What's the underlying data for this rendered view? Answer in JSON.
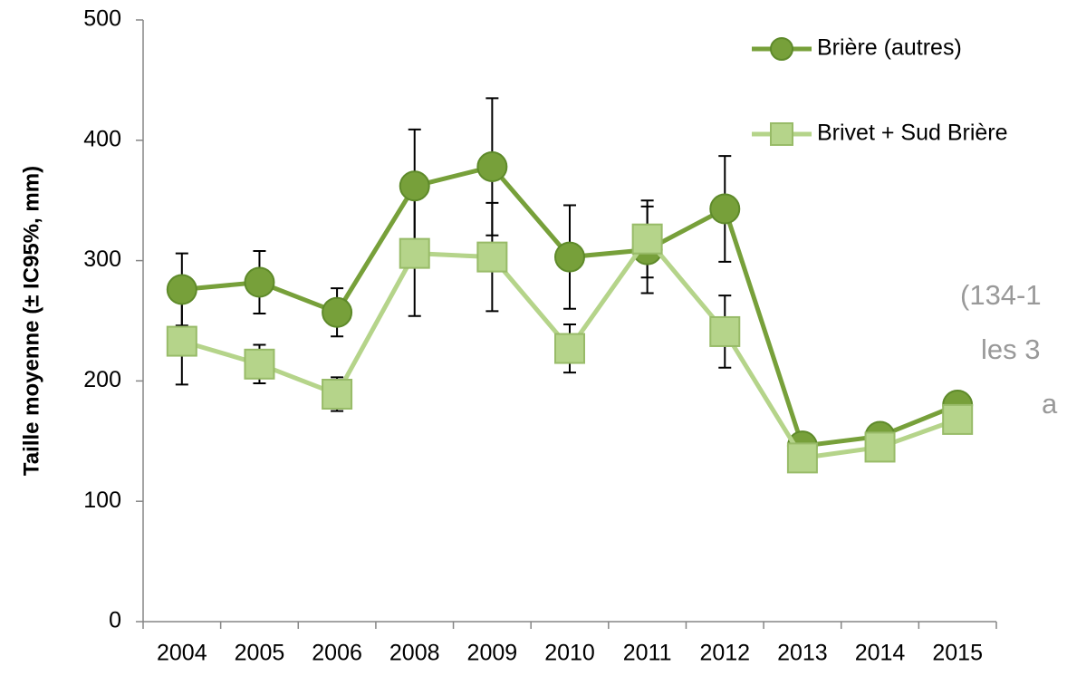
{
  "chart_data": {
    "type": "line",
    "y_label": "Taille moyenne (± IC95%, mm)",
    "categories": [
      "2004",
      "2005",
      "2006",
      "2008",
      "2009",
      "2010",
      "2011",
      "2012",
      "2013",
      "2014",
      "2015"
    ],
    "series": [
      {
        "name": "Brière (autres)",
        "color": "#77a03a",
        "marker": "circle",
        "values": [
          276,
          282,
          257,
          362,
          378,
          303,
          309,
          343,
          146,
          154,
          180
        ],
        "errors": [
          30,
          26,
          20,
          47,
          57,
          43,
          36,
          44,
          null,
          null,
          null
        ]
      },
      {
        "name": "Brivet + Sud Brière",
        "color": "#b5d48a",
        "marker": "square",
        "values": [
          233,
          214,
          189,
          306,
          303,
          227,
          318,
          241,
          136,
          145,
          168
        ],
        "errors": [
          36,
          16,
          14,
          52,
          45,
          20,
          32,
          30,
          null,
          null,
          null
        ]
      }
    ],
    "annotation_lines": [
      "(134-1",
      "les 3",
      "a"
    ],
    "ylim": [
      0,
      500
    ],
    "yticks": [
      0,
      100,
      200,
      300,
      400,
      500
    ],
    "legend": "top-right"
  }
}
